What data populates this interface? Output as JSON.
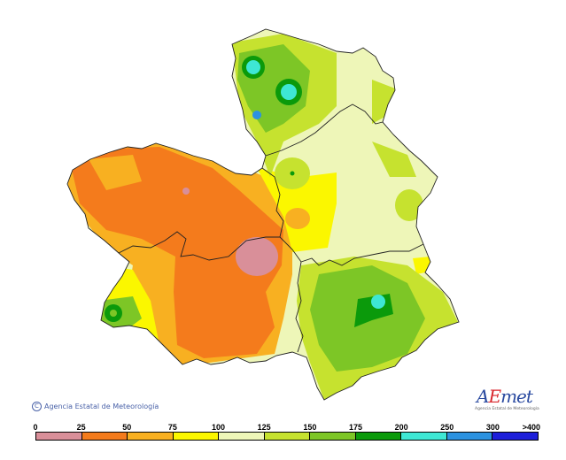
{
  "map": {
    "colors": {
      "r0_25": "#d98f99",
      "r25_50": "#f47b1c",
      "r50_75": "#f8b021",
      "r75_100": "#fbf700",
      "r100_125": "#eef6b8",
      "r125_150": "#c6e22f",
      "r150_175": "#7dc626",
      "r175_200": "#0b9a0b",
      "r200_250": "#3ee7d4",
      "r250_300": "#2c92e0",
      "r300_400": "#1d1fd9"
    },
    "border_color": "#222222"
  },
  "footer": {
    "copyright": "Agencia Estatal de Meteorología",
    "logo_text": "AEmet",
    "logo_subtext": "Agencia Estatal de Meteorología"
  },
  "legend": {
    "ticks": [
      "0",
      "25",
      "50",
      "75",
      "100",
      "125",
      "150",
      "175",
      "200",
      "250",
      "300",
      ">400"
    ],
    "colors": [
      "#d98f99",
      "#f47b1c",
      "#f8b021",
      "#fbf700",
      "#eef6b8",
      "#c6e22f",
      "#7dc626",
      "#0b9a0b",
      "#3ee7d4",
      "#2c92e0",
      "#1d1fd9"
    ]
  }
}
